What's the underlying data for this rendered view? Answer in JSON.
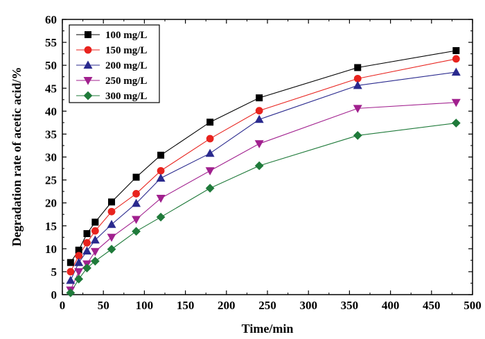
{
  "chart_data": {
    "type": "line",
    "xlabel": "Time/min",
    "ylabel": "Degradation rate of acetic acid/%",
    "xlim": [
      0,
      500
    ],
    "ylim": [
      0,
      60
    ],
    "xticks": [
      "0",
      "50",
      "100",
      "150",
      "200",
      "250",
      "300",
      "350",
      "400",
      "450",
      "500"
    ],
    "yticks": [
      "0",
      "5",
      "10",
      "15",
      "20",
      "25",
      "30",
      "35",
      "40",
      "45",
      "50",
      "55",
      "60"
    ],
    "grid": false,
    "legend_position": "top-left",
    "x": [
      10,
      20,
      30,
      40,
      60,
      90,
      120,
      180,
      240,
      360,
      480
    ],
    "series": [
      {
        "name": "100 mg/L",
        "color": "#000000",
        "marker": "square",
        "values": [
          7.0,
          9.7,
          13.3,
          15.8,
          20.2,
          25.6,
          30.4,
          37.6,
          42.9,
          49.5,
          53.2
        ]
      },
      {
        "name": "150 mg/L",
        "color": "#e8231e",
        "marker": "circle",
        "values": [
          5.0,
          8.5,
          11.3,
          13.9,
          18.1,
          22.0,
          27.0,
          34.0,
          40.1,
          47.1,
          51.4
        ]
      },
      {
        "name": "200 mg/L",
        "color": "#2a2a8e",
        "marker": "triangle-up",
        "values": [
          3.1,
          7.0,
          9.5,
          11.9,
          15.3,
          19.9,
          25.4,
          30.8,
          38.2,
          45.6,
          48.5
        ]
      },
      {
        "name": "250 mg/L",
        "color": "#a1208e",
        "marker": "triangle-down",
        "values": [
          1.0,
          5.0,
          6.7,
          9.4,
          12.5,
          16.4,
          21.0,
          27.0,
          32.9,
          40.6,
          41.9
        ]
      },
      {
        "name": "300 mg/L",
        "color": "#1f7a3a",
        "marker": "diamond",
        "values": [
          0.4,
          3.4,
          5.8,
          7.3,
          9.9,
          13.8,
          16.9,
          23.2,
          28.1,
          34.7,
          37.4
        ]
      }
    ]
  }
}
